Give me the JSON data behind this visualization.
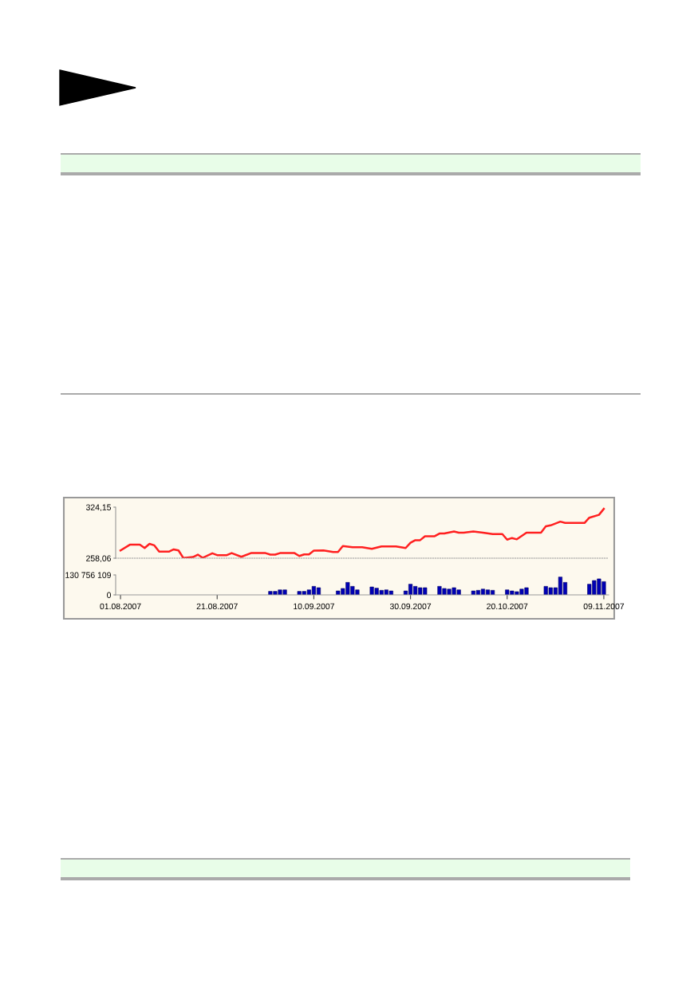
{
  "chart_data": [
    {
      "type": "line",
      "color": "#ff2020",
      "xlim": [
        "2007-07-31",
        "2007-11-10"
      ],
      "ylim": [
        258.06,
        324.15
      ],
      "yticks": [
        {
          "value": 258.06,
          "label": "258,06"
        },
        {
          "value": 324.15,
          "label": "324,15"
        }
      ],
      "tick_labels": "y",
      "grid": false,
      "legend": false,
      "marker": "none",
      "line_style": "solid",
      "x": [
        "2007-08-01",
        "2007-08-03",
        "2007-08-05",
        "2007-08-06",
        "2007-08-07",
        "2007-08-08",
        "2007-08-09",
        "2007-08-11",
        "2007-08-12",
        "2007-08-13",
        "2007-08-14",
        "2007-08-16",
        "2007-08-17",
        "2007-08-18",
        "2007-08-20",
        "2007-08-21",
        "2007-08-23",
        "2007-08-24",
        "2007-08-26",
        "2007-08-28",
        "2007-08-30",
        "2007-08-31",
        "2007-09-01",
        "2007-09-02",
        "2007-09-03",
        "2007-09-06",
        "2007-09-07",
        "2007-09-08",
        "2007-09-09",
        "2007-09-10",
        "2007-09-12",
        "2007-09-14",
        "2007-09-15",
        "2007-09-16",
        "2007-09-18",
        "2007-09-20",
        "2007-09-22",
        "2007-09-24",
        "2007-09-27",
        "2007-09-29",
        "2007-09-30",
        "2007-10-01",
        "2007-10-02",
        "2007-10-03",
        "2007-10-05",
        "2007-10-06",
        "2007-10-07",
        "2007-10-09",
        "2007-10-10",
        "2007-10-11",
        "2007-10-13",
        "2007-10-15",
        "2007-10-17",
        "2007-10-19",
        "2007-10-20",
        "2007-10-21",
        "2007-10-22",
        "2007-10-24",
        "2007-10-27",
        "2007-10-28",
        "2007-10-29",
        "2007-10-31",
        "2007-11-01",
        "2007-11-05",
        "2007-11-06",
        "2007-11-08",
        "2007-11-09"
      ],
      "values": [
        268.1,
        275.7,
        275.7,
        271.2,
        276.7,
        274.7,
        266.5,
        266.5,
        269.5,
        268.1,
        258.3,
        259.6,
        262.7,
        258.6,
        264.4,
        262.0,
        262.0,
        264.7,
        259.9,
        264.7,
        264.7,
        264.7,
        262.7,
        262.7,
        264.7,
        264.7,
        260.9,
        263.0,
        263.0,
        267.8,
        268.1,
        266.1,
        266.1,
        273.9,
        272.2,
        272.2,
        270.2,
        273.2,
        273.2,
        271.2,
        278.0,
        281.4,
        281.4,
        286.5,
        286.5,
        290.0,
        290.0,
        292.7,
        291.1,
        291.1,
        292.7,
        291.1,
        289.3,
        289.3,
        282.1,
        284.2,
        282.5,
        291.1,
        291.1,
        299.3,
        300.6,
        305.4,
        303.7,
        303.7,
        310.5,
        314.2,
        322.0
      ]
    },
    {
      "type": "bar",
      "color": "#0000b4",
      "xlim": [
        "2007-07-31",
        "2007-11-10"
      ],
      "ylim": [
        0,
        130756109
      ],
      "yticks": [
        0,
        {
          "value": 130756109,
          "label": "130 756 109"
        }
      ],
      "xticks": [
        {
          "value": "2007-08-01",
          "label": "01.08.2007"
        },
        {
          "value": "2007-08-21",
          "label": "21.08.2007"
        },
        {
          "value": "2007-09-10",
          "label": "10.09.2007"
        },
        {
          "value": "2007-09-30",
          "label": "30.09.2007"
        },
        {
          "value": "2007-10-20",
          "label": "20.10.2007"
        },
        {
          "value": "2007-11-09",
          "label": "09.11.2007"
        }
      ],
      "grid": false,
      "legend": false,
      "x": [
        "2007-09-01",
        "2007-09-02",
        "2007-09-03",
        "2007-09-04",
        "2007-09-07",
        "2007-09-08",
        "2007-09-09",
        "2007-09-10",
        "2007-09-11",
        "2007-09-15",
        "2007-09-16",
        "2007-09-17",
        "2007-09-18",
        "2007-09-19",
        "2007-09-22",
        "2007-09-23",
        "2007-09-24",
        "2007-09-25",
        "2007-09-26",
        "2007-09-29",
        "2007-09-30",
        "2007-10-01",
        "2007-10-02",
        "2007-10-03",
        "2007-10-06",
        "2007-10-07",
        "2007-10-08",
        "2007-10-09",
        "2007-10-10",
        "2007-10-13",
        "2007-10-14",
        "2007-10-15",
        "2007-10-16",
        "2007-10-17",
        "2007-10-20",
        "2007-10-21",
        "2007-10-22",
        "2007-10-23",
        "2007-10-24",
        "2007-10-28",
        "2007-10-29",
        "2007-10-30",
        "2007-10-31",
        "2007-11-01",
        "2007-11-06",
        "2007-11-07",
        "2007-11-08",
        "2007-11-09"
      ],
      "values": [
        23000000,
        23000000,
        33000000,
        33000000,
        23000000,
        23000000,
        33000000,
        56000000,
        47000000,
        26000000,
        42000000,
        82000000,
        56000000,
        33000000,
        52000000,
        44000000,
        30000000,
        33000000,
        26000000,
        26000000,
        70000000,
        56000000,
        47000000,
        47000000,
        56000000,
        42000000,
        38000000,
        47000000,
        33000000,
        26000000,
        30000000,
        38000000,
        33000000,
        30000000,
        33000000,
        26000000,
        21000000,
        38000000,
        47000000,
        56000000,
        47000000,
        47000000,
        117000000,
        82000000,
        70000000,
        94000000,
        105000000,
        87000000
      ]
    }
  ]
}
